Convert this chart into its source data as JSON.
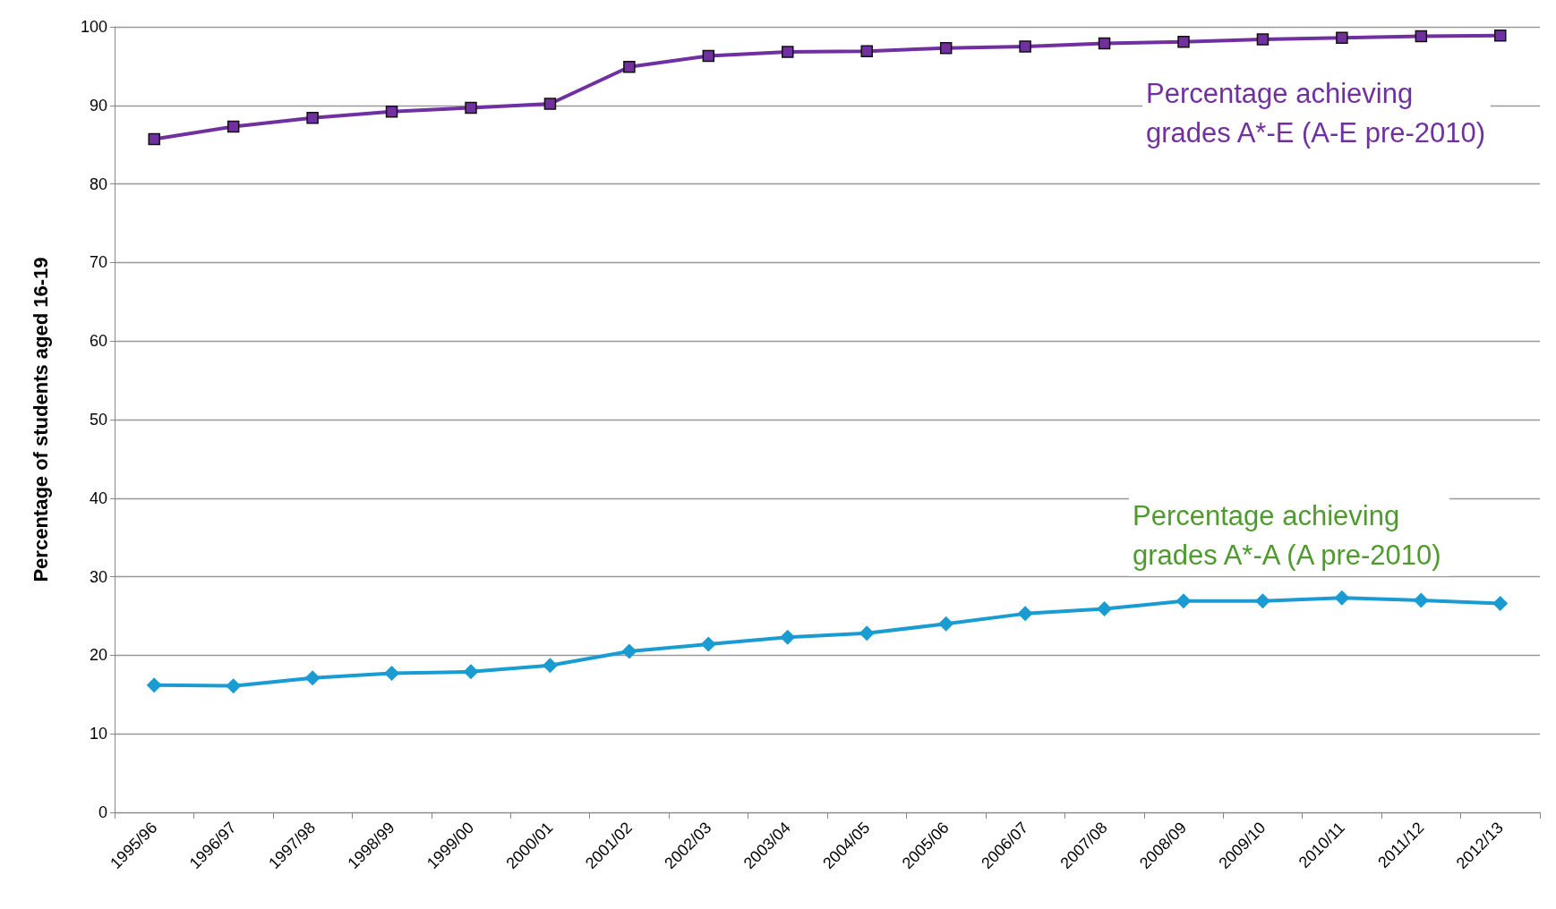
{
  "chart_data": {
    "type": "line",
    "ylabel": "Percentage of students aged 16-19",
    "categories": [
      "1995/96",
      "1996/97",
      "1997/98",
      "1998/99",
      "1999/00",
      "2000/01",
      "2001/02",
      "2002/03",
      "2003/04",
      "2004/05",
      "2005/06",
      "2006/07",
      "2007/08",
      "2008/09",
      "2009/10",
      "2010/11",
      "2011/12",
      "2012/13"
    ],
    "series": [
      {
        "color": "#7030a0",
        "marker": "square",
        "values": [
          85.7,
          87.3,
          88.4,
          89.2,
          89.7,
          90.2,
          94.9,
          96.3,
          96.8,
          96.9,
          97.3,
          97.5,
          97.9,
          98.1,
          98.4,
          98.6,
          98.8,
          98.9
        ]
      },
      {
        "color": "#1a9bd1",
        "marker": "diamond",
        "values": [
          16.2,
          16.1,
          17.1,
          17.7,
          17.9,
          18.7,
          20.5,
          21.4,
          22.3,
          22.8,
          24.0,
          25.3,
          25.9,
          26.9,
          26.9,
          27.3,
          27.0,
          26.6
        ]
      }
    ],
    "annotations": [
      "Percentage achieving\ngrades A*-E (A-E pre-2010)",
      "Percentage achieving\ngrades A*-A (A pre-2010)"
    ],
    "ylim": [
      0,
      100
    ],
    "yticks": [
      0,
      10,
      20,
      30,
      40,
      50,
      60,
      70,
      80,
      90,
      100
    ],
    "grid": "y",
    "line_style": "solid"
  }
}
